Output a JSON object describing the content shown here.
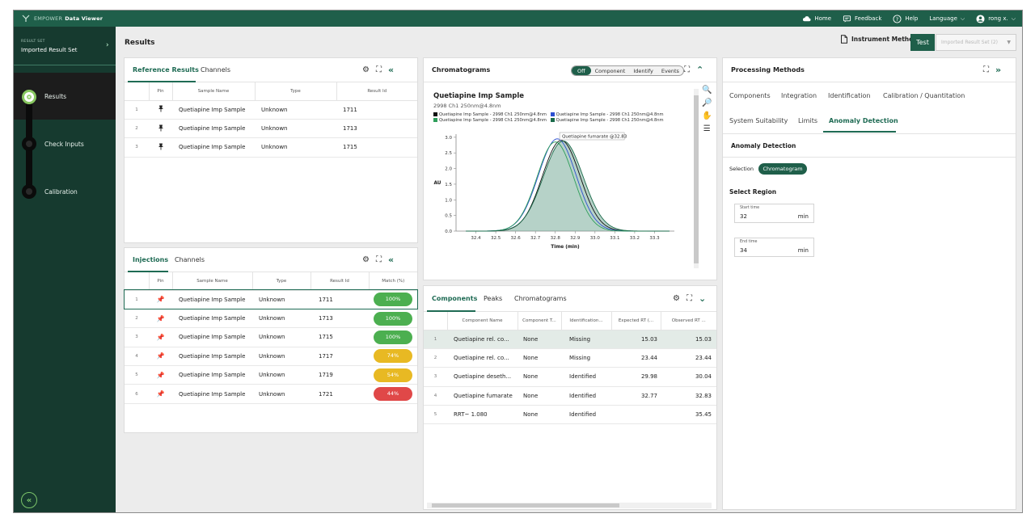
{
  "topbar": {
    "brand_light": "EMPOWER",
    "brand_bold": "Data Viewer",
    "home": "Home",
    "feedback": "Feedback",
    "help": "Help",
    "language": "Language",
    "user": "rong x."
  },
  "sidebar": {
    "result_set_label": "RESULT SET",
    "result_set_value": "Imported Result Set",
    "steps": [
      {
        "label": "Results",
        "active": true
      },
      {
        "label": "Check Inputs",
        "active": false
      },
      {
        "label": "Calibration",
        "active": false
      }
    ],
    "collapse_glyph": "«"
  },
  "header": {
    "title": "Results",
    "instrument_method": "Instrument Method",
    "test": "Test",
    "imported_result_set": "Imported Result Set (2)"
  },
  "reference_panel": {
    "tabs": [
      "Reference Results",
      "Channels"
    ],
    "columns": [
      "Pin",
      "Sample Name",
      "Type",
      "Result Id"
    ],
    "rows": [
      {
        "idx": "1",
        "sample": "Quetiapine Imp Sample",
        "type": "Unknown",
        "id": "1711"
      },
      {
        "idx": "2",
        "sample": "Quetiapine Imp Sample",
        "type": "Unknown",
        "id": "1713"
      },
      {
        "idx": "3",
        "sample": "Quetiapine Imp Sample",
        "type": "Unknown",
        "id": "1715"
      }
    ]
  },
  "injections_panel": {
    "tabs": [
      "Injections",
      "Channels"
    ],
    "columns": [
      "Pin",
      "Sample Name",
      "Type",
      "Result Id",
      "Match (%)"
    ],
    "rows": [
      {
        "idx": "1",
        "sample": "Quetiapine Imp Sample",
        "type": "Unknown",
        "id": "1711",
        "match": "100%",
        "color": "#4caf50"
      },
      {
        "idx": "2",
        "sample": "Quetiapine Imp Sample",
        "type": "Unknown",
        "id": "1713",
        "match": "100%",
        "color": "#4caf50"
      },
      {
        "idx": "3",
        "sample": "Quetiapine Imp Sample",
        "type": "Unknown",
        "id": "1715",
        "match": "100%",
        "color": "#4caf50"
      },
      {
        "idx": "4",
        "sample": "Quetiapine Imp Sample",
        "type": "Unknown",
        "id": "1717",
        "match": "74%",
        "color": "#e8b923"
      },
      {
        "idx": "5",
        "sample": "Quetiapine Imp Sample",
        "type": "Unknown",
        "id": "1719",
        "match": "54%",
        "color": "#e8b923"
      },
      {
        "idx": "6",
        "sample": "Quetiapine Imp Sample",
        "type": "Unknown",
        "id": "1721",
        "match": "44%",
        "color": "#e04848"
      }
    ]
  },
  "chromatogram_panel": {
    "title": "Chromatograms",
    "segments": [
      "Off",
      "Component",
      "Identify",
      "Events"
    ],
    "plot_title": "Quetiapine Imp Sample",
    "plot_subtitle": "2998 Ch1 250nm@4.8nm",
    "legend": [
      {
        "label": "Quetiapine Imp Sample - 2998 Ch1 250nm@4.8nm",
        "color": "#111111"
      },
      {
        "label": "Quetiapine Imp Sample - 2998 Ch1 250nm@4.8nm",
        "color": "#2d4fd1"
      },
      {
        "label": "Quetiapine Imp Sample - 2998 Ch1 250nm@4.8nm",
        "color": "#2e9e5a"
      },
      {
        "label": "Quetiapine Imp Sample - 2998 Ch1 250nm@4.8nm",
        "color": "#1a6a4a"
      }
    ],
    "peak_annotation": "Quetiapine fumarate @32.83",
    "xlabel": "Time (min)",
    "ylabel": "AU"
  },
  "chart_data": {
    "type": "line",
    "title": "Quetiapine Imp Sample",
    "subtitle": "2998 Ch1 250nm@4.8nm",
    "xlabel": "Time (min)",
    "ylabel": "AU",
    "xlim": [
      32.3,
      33.4
    ],
    "ylim": [
      0,
      3.1
    ],
    "xticks": [
      "32.4",
      "32.5",
      "32.6",
      "32.7",
      "32.8",
      "32.9",
      "33.0",
      "33.1",
      "33.2",
      "33.3"
    ],
    "yticks": [
      "0.0",
      "0.5",
      "1.0",
      "1.5",
      "2.0",
      "2.5",
      "3.0"
    ],
    "series": [
      {
        "color": "#111111",
        "peak_x": 32.83,
        "peak_y": 2.9,
        "width": 0.095
      },
      {
        "color": "#2d4fd1",
        "peak_x": 32.81,
        "peak_y": 2.95,
        "width": 0.095
      },
      {
        "color": "#2e9e5a",
        "peak_x": 32.8,
        "peak_y": 2.85,
        "width": 0.092
      },
      {
        "color": "#1a6a4a",
        "peak_x": 32.84,
        "peak_y": 2.88,
        "width": 0.1
      }
    ],
    "annotation": {
      "text": "Quetiapine fumarate @32.83",
      "x": 32.83
    }
  },
  "components_panel": {
    "tabs": [
      "Components",
      "Peaks",
      "Chromatograms"
    ],
    "columns": [
      "Component Name",
      "Component T...",
      "Identification...",
      "Expected RT (...",
      "Observed RT ..."
    ],
    "rows": [
      {
        "idx": "1",
        "name": "Quetiapine rel. co...",
        "type": "None",
        "ident": "Missing",
        "exp": "15.03",
        "obs": "15.03"
      },
      {
        "idx": "2",
        "name": "Quetiapine rel. co...",
        "type": "None",
        "ident": "Missing",
        "exp": "23.44",
        "obs": "23.44"
      },
      {
        "idx": "3",
        "name": "Quetiapine deseth...",
        "type": "None",
        "ident": "Identified",
        "exp": "29.98",
        "obs": "30.04"
      },
      {
        "idx": "4",
        "name": "Quetiapine fumarate",
        "type": "None",
        "ident": "Identified",
        "exp": "32.77",
        "obs": "32.83"
      },
      {
        "idx": "5",
        "name": "RRT~ 1.080",
        "type": "None",
        "ident": "Identified",
        "exp": "",
        "obs": "35.45"
      }
    ]
  },
  "processing_panel": {
    "title": "Processing Methods",
    "tabs_row1": [
      "Components",
      "Integration",
      "Identification",
      "Calibration / Quantitation"
    ],
    "tabs_row2": [
      "System Suitability",
      "Limits",
      "Anomaly Detection"
    ],
    "section_title": "Anomaly Detection",
    "selection_label": "Selection",
    "selection_value": "Chromatogram",
    "select_region": "Select Region",
    "start_label": "Start time",
    "start_value": "32",
    "end_label": "End time",
    "end_value": "34",
    "unit": "min"
  }
}
